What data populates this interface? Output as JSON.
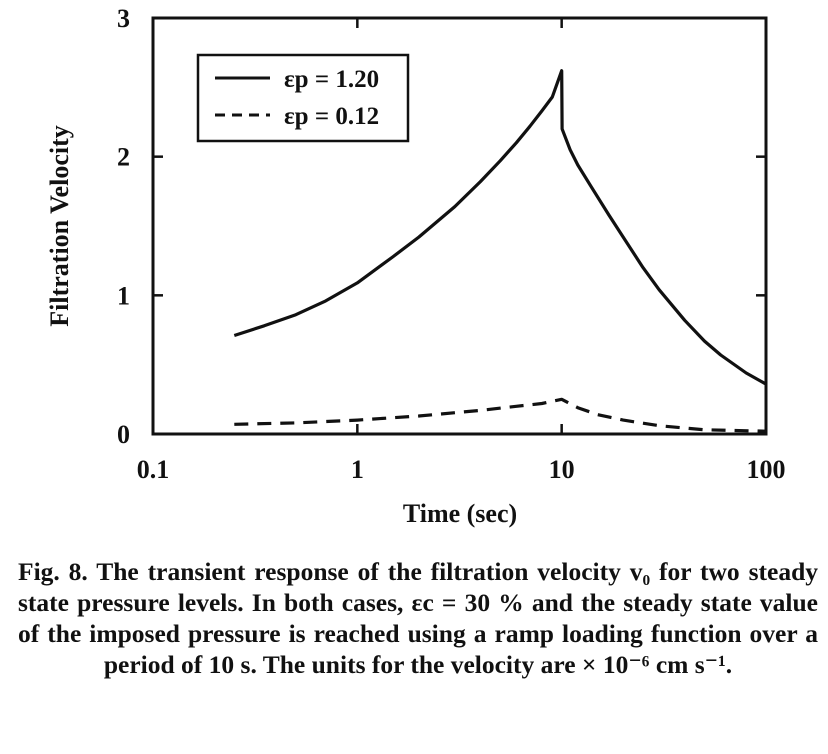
{
  "chart_data": {
    "type": "line",
    "title": "",
    "xlabel": "Time (sec)",
    "ylabel": "Filtration Velocity",
    "xscale": "log",
    "xlim": [
      0.1,
      100
    ],
    "ylim": [
      0,
      3
    ],
    "x_ticks": [
      0.1,
      1,
      10,
      100
    ],
    "x_tick_labels": [
      "0.1",
      "1",
      "10",
      "100"
    ],
    "y_ticks": [
      0,
      1,
      2,
      3
    ],
    "y_tick_labels": [
      "0",
      "1",
      "2",
      "3"
    ],
    "grid": false,
    "legend_position": "top-left",
    "series": [
      {
        "name": "εp = 1.20",
        "style": "solid",
        "x": [
          0.25,
          0.35,
          0.5,
          0.7,
          1,
          1.5,
          2,
          3,
          4,
          5,
          6,
          7,
          8,
          9,
          10,
          10.05,
          11,
          12,
          14,
          17,
          20,
          25,
          30,
          40,
          50,
          60,
          80,
          100
        ],
        "y": [
          0.71,
          0.78,
          0.86,
          0.96,
          1.09,
          1.28,
          1.42,
          1.64,
          1.82,
          1.97,
          2.1,
          2.22,
          2.33,
          2.43,
          2.62,
          2.2,
          2.05,
          1.94,
          1.78,
          1.58,
          1.42,
          1.2,
          1.04,
          0.82,
          0.67,
          0.57,
          0.44,
          0.36
        ]
      },
      {
        "name": "εp = 0.12",
        "style": "dashed",
        "x": [
          0.25,
          0.5,
          1,
          2,
          4,
          6,
          8,
          10,
          12,
          15,
          20,
          30,
          50,
          100
        ],
        "y": [
          0.07,
          0.08,
          0.1,
          0.13,
          0.17,
          0.2,
          0.22,
          0.25,
          0.19,
          0.14,
          0.1,
          0.06,
          0.03,
          0.02
        ]
      }
    ]
  },
  "caption": {
    "text": "Fig. 8. The transient response of the filtration velocity v₀ for two steady state pressure levels. In both cases, εc = 30 % and the steady state value of the imposed pressure is reached using a ramp loading function over a period of 10 s. The units for the velocity are  × 10⁻⁶ cm s⁻¹."
  }
}
